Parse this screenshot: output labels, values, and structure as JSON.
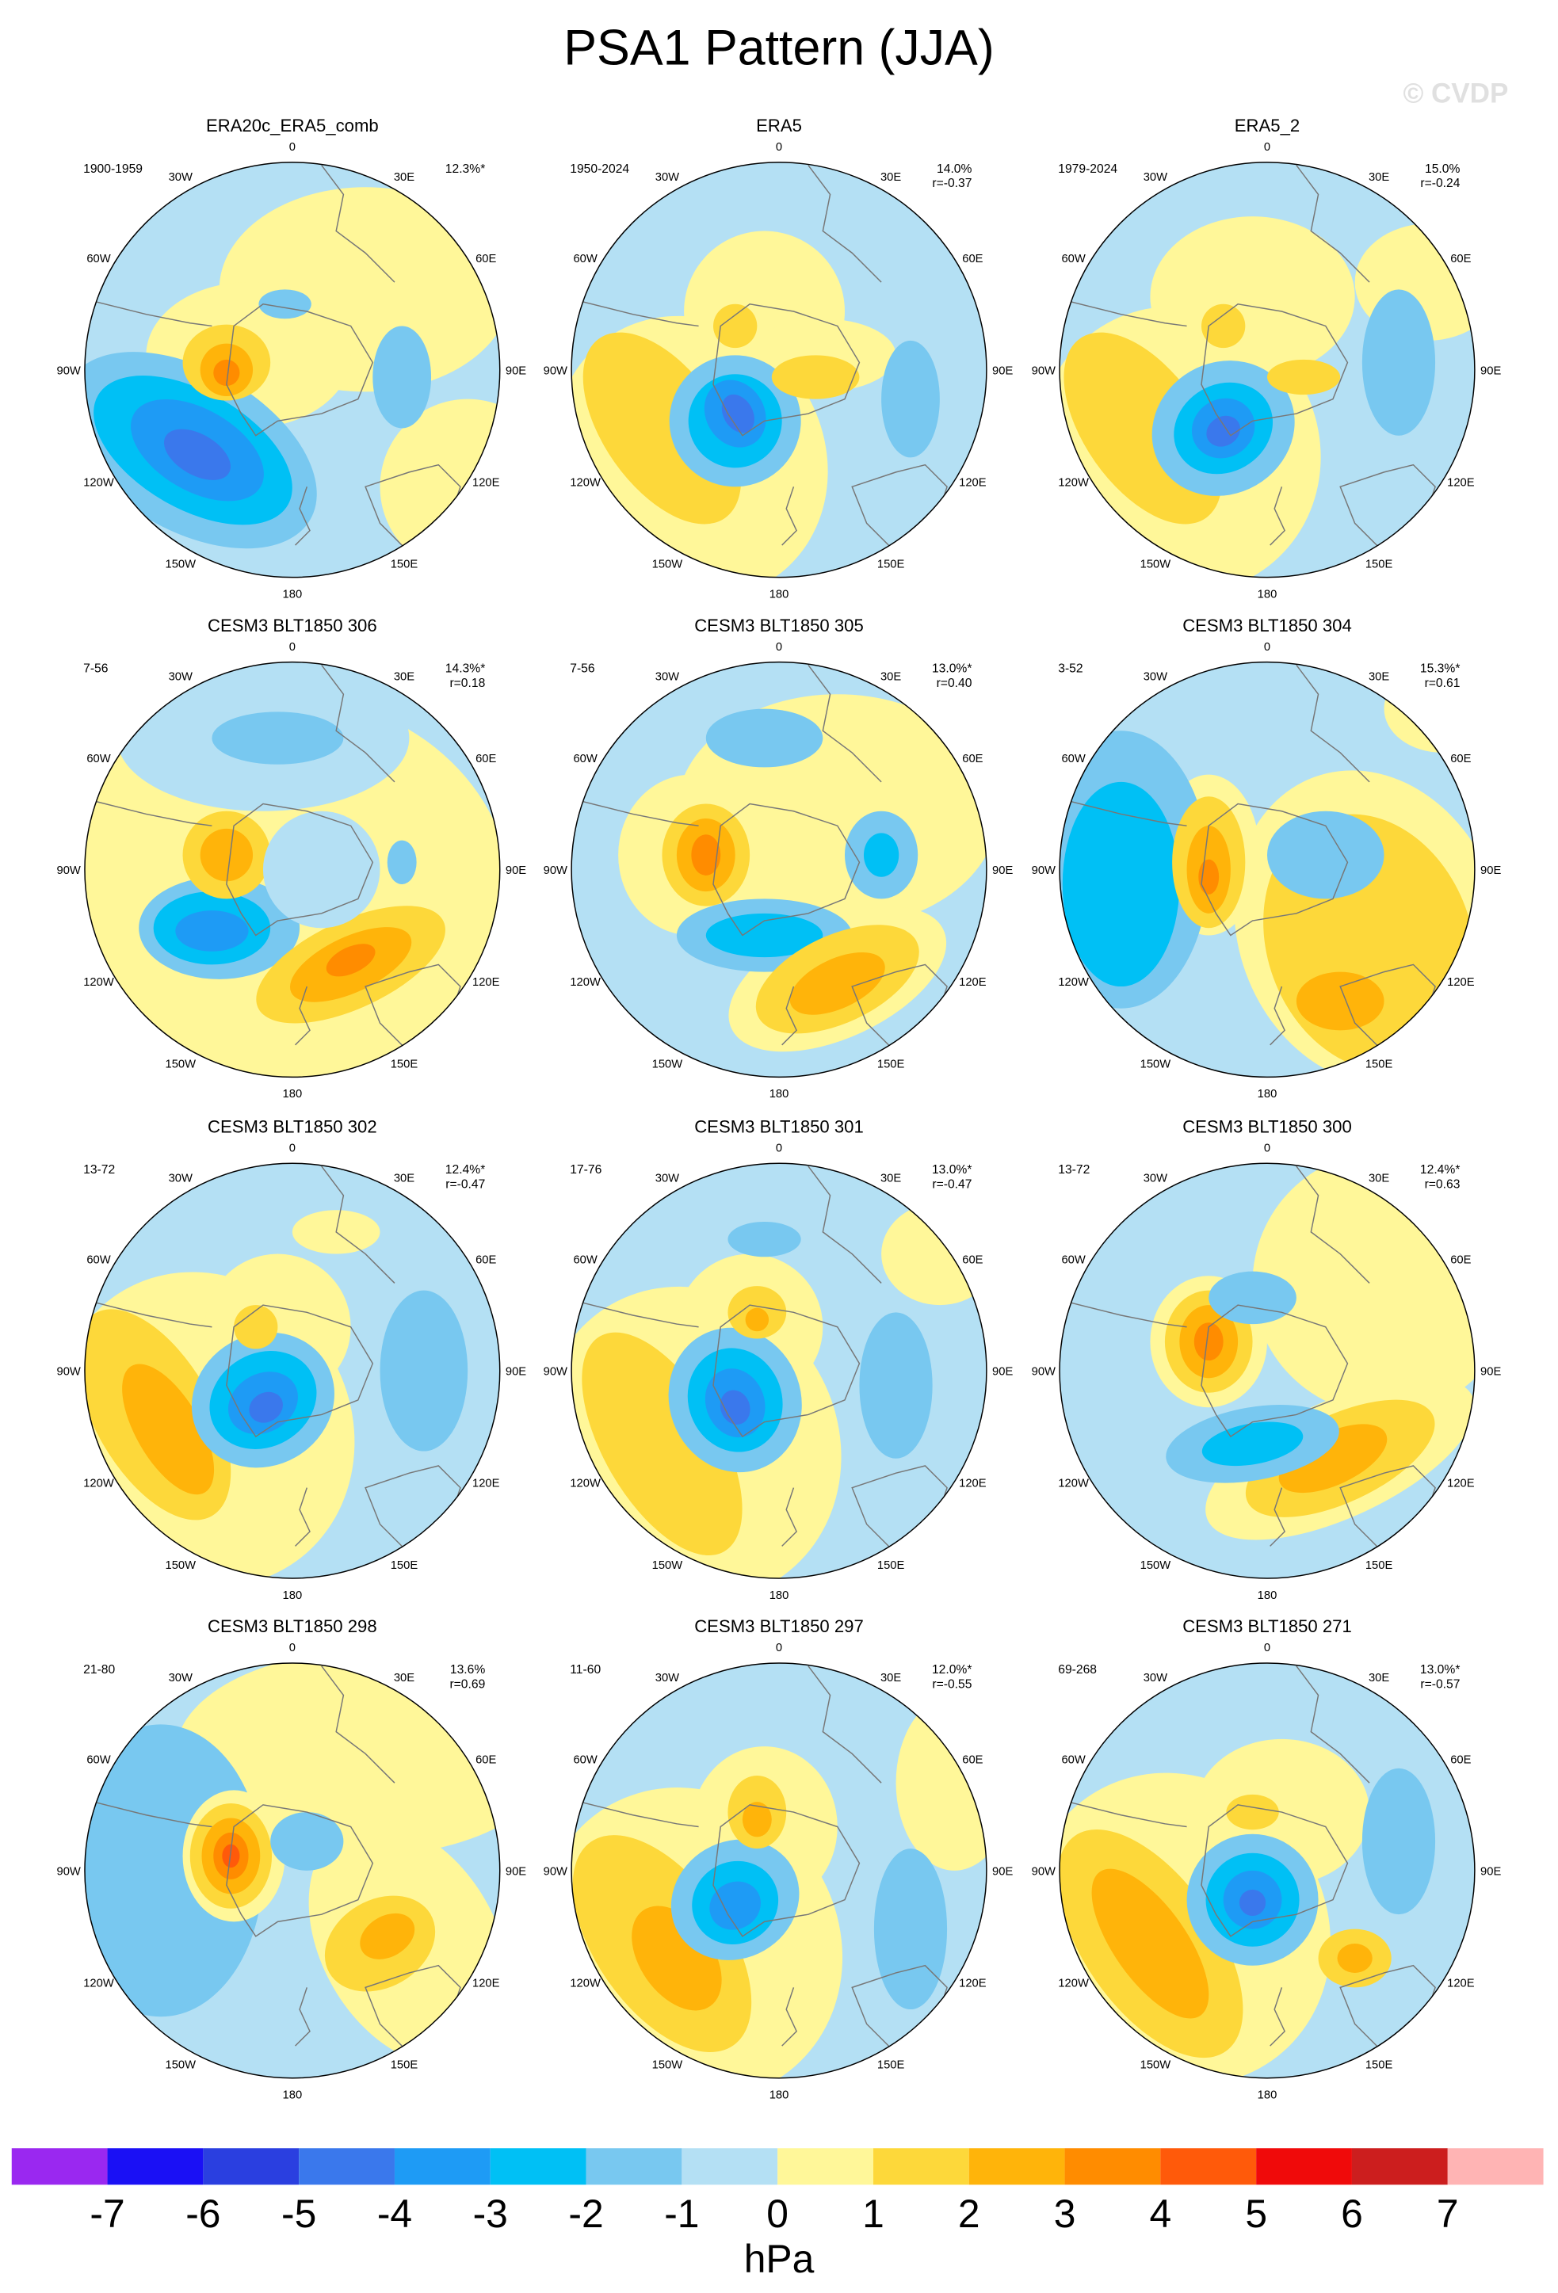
{
  "title": "PSA1 Pattern (JJA)",
  "watermark": "© CVDP",
  "longitude_labels": [
    "0",
    "30E",
    "60E",
    "90E",
    "120E",
    "150E",
    "180",
    "150W",
    "120W",
    "90W",
    "60W",
    "30W"
  ],
  "panels": [
    {
      "title": "ERA20c_ERA5_comb",
      "period": "1900-1959",
      "percent": "12.3%*"
    },
    {
      "title": "ERA5",
      "period": "1950-2024",
      "percent": "14.0%",
      "correlation": "r=-0.37"
    },
    {
      "title": "ERA5_2",
      "period": "1979-2024",
      "percent": "15.0%",
      "correlation": "r=-0.24"
    },
    {
      "title": "CESM3 BLT1850 306",
      "period": "7-56",
      "percent": "14.3%*",
      "correlation": "r=0.18"
    },
    {
      "title": "CESM3 BLT1850 305",
      "period": "7-56",
      "percent": "13.0%*",
      "correlation": "r=0.40"
    },
    {
      "title": "CESM3 BLT1850 304",
      "period": "3-52",
      "percent": "15.3%*",
      "correlation": "r=0.61"
    },
    {
      "title": "CESM3 BLT1850 302",
      "period": "13-72",
      "percent": "12.4%*",
      "correlation": "r=-0.47"
    },
    {
      "title": "CESM3 BLT1850 301",
      "period": "17-76",
      "percent": "13.0%*",
      "correlation": "r=-0.47"
    },
    {
      "title": "CESM3 BLT1850 300",
      "period": "13-72",
      "percent": "12.4%*",
      "correlation": "r=0.63"
    },
    {
      "title": "CESM3 BLT1850 298",
      "period": "21-80",
      "percent": "13.6%",
      "correlation": "r=0.69"
    },
    {
      "title": "CESM3 BLT1850 297",
      "period": "11-60",
      "percent": "12.0%*",
      "correlation": "r=-0.55"
    },
    {
      "title": "CESM3 BLT1850 271",
      "period": "69-268",
      "percent": "13.0%*",
      "correlation": "r=-0.57"
    }
  ],
  "colorbar": {
    "colors": [
      "#9a28f0",
      "#1a10f5",
      "#2a3fe0",
      "#3a78ec",
      "#1e9bf5",
      "#00c0f5",
      "#78c8f0",
      "#b4e0f4",
      "#fff799",
      "#fdd83a",
      "#ffb40a",
      "#ff8c00",
      "#ff5a0a",
      "#f00a0a",
      "#cc1e1e",
      "#ffb4b4"
    ],
    "ticks": [
      -7,
      -6,
      -5,
      -4,
      -3,
      -2,
      -1,
      0,
      1,
      2,
      3,
      4,
      5,
      6,
      7
    ],
    "label": "hPa"
  }
}
